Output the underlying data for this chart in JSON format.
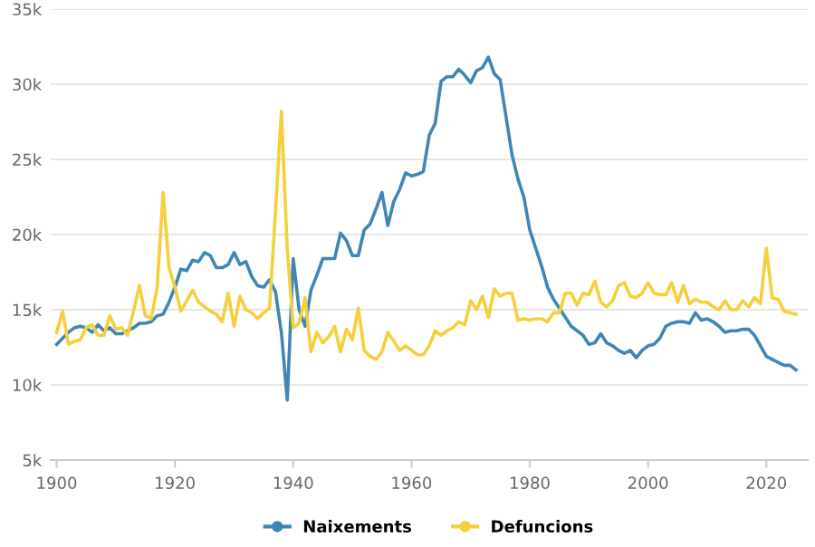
{
  "chart_data": {
    "type": "line",
    "x": [
      1900,
      1901,
      1902,
      1903,
      1904,
      1905,
      1906,
      1907,
      1908,
      1909,
      1910,
      1911,
      1912,
      1913,
      1914,
      1915,
      1916,
      1917,
      1918,
      1919,
      1920,
      1921,
      1922,
      1923,
      1924,
      1925,
      1926,
      1927,
      1928,
      1929,
      1930,
      1931,
      1932,
      1933,
      1934,
      1935,
      1936,
      1937,
      1938,
      1939,
      1940,
      1941,
      1942,
      1943,
      1944,
      1945,
      1946,
      1947,
      1948,
      1949,
      1950,
      1951,
      1952,
      1953,
      1954,
      1955,
      1956,
      1957,
      1958,
      1959,
      1960,
      1961,
      1962,
      1963,
      1964,
      1965,
      1966,
      1967,
      1968,
      1969,
      1970,
      1971,
      1972,
      1973,
      1974,
      1975,
      1976,
      1977,
      1978,
      1979,
      1980,
      1981,
      1982,
      1983,
      1984,
      1985,
      1986,
      1987,
      1988,
      1989,
      1990,
      1991,
      1992,
      1993,
      1994,
      1995,
      1996,
      1997,
      1998,
      1999,
      2000,
      2001,
      2002,
      2003,
      2004,
      2005,
      2006,
      2007,
      2008,
      2009,
      2010,
      2011,
      2012,
      2013,
      2014,
      2015,
      2016,
      2017,
      2018,
      2019,
      2020,
      2021,
      2022,
      2023,
      2024,
      2025
    ],
    "series": [
      {
        "name": "Naixements",
        "color": "#3f86b6",
        "values": [
          12700,
          13100,
          13500,
          13800,
          13900,
          13800,
          13500,
          14000,
          13600,
          13800,
          13400,
          13400,
          13600,
          13800,
          14100,
          14100,
          14200,
          14600,
          14700,
          15500,
          16500,
          17700,
          17600,
          18300,
          18200,
          18800,
          18600,
          17800,
          17800,
          18000,
          18800,
          18000,
          18200,
          17200,
          16600,
          16500,
          17000,
          16200,
          13500,
          9000,
          18400,
          15000,
          13900,
          16300,
          17300,
          18400,
          18400,
          18400,
          20100,
          19600,
          18600,
          18600,
          20300,
          20700,
          21700,
          22800,
          20600,
          22200,
          23000,
          24100,
          23900,
          24000,
          24200,
          26600,
          27400,
          30200,
          30500,
          30500,
          31000,
          30600,
          30100,
          30900,
          31100,
          31800,
          30700,
          30300,
          27800,
          25300,
          23700,
          22500,
          20300,
          19100,
          17900,
          16500,
          15700,
          15100,
          14500,
          13900,
          13600,
          13300,
          12700,
          12800,
          13400,
          12800,
          12600,
          12300,
          12100,
          12300,
          11800,
          12300,
          12600,
          12700,
          13100,
          13900,
          14100,
          14200,
          14200,
          14100,
          14800,
          14300,
          14400,
          14200,
          13900,
          13500,
          13600,
          13600,
          13700,
          13700,
          13300,
          12600,
          11900,
          11700,
          11500,
          11300,
          11300,
          11000
        ]
      },
      {
        "name": "Defuncions",
        "color": "#f5cf3c",
        "values": [
          13500,
          14900,
          12700,
          12900,
          13000,
          13800,
          14000,
          13300,
          13300,
          14600,
          13700,
          13800,
          13300,
          14900,
          16600,
          14600,
          14400,
          16500,
          22800,
          17800,
          16500,
          14900,
          15600,
          16300,
          15500,
          15200,
          14900,
          14700,
          14200,
          16100,
          13900,
          15900,
          15000,
          14800,
          14400,
          14800,
          15100,
          21500,
          28200,
          19000,
          13800,
          14100,
          15800,
          12200,
          13500,
          12800,
          13200,
          13900,
          12200,
          13700,
          13000,
          15100,
          12300,
          11900,
          11700,
          12200,
          13500,
          12900,
          12300,
          12600,
          12300,
          12000,
          12000,
          12600,
          13600,
          13300,
          13600,
          13800,
          14200,
          14000,
          15600,
          15000,
          15900,
          14500,
          16400,
          15900,
          16100,
          16100,
          14300,
          14400,
          14300,
          14400,
          14400,
          14200,
          14800,
          14800,
          16100,
          16100,
          15300,
          16100,
          16000,
          16900,
          15500,
          15200,
          15600,
          16600,
          16800,
          15900,
          15800,
          16100,
          16800,
          16100,
          16000,
          16000,
          16800,
          15500,
          16600,
          15400,
          15700,
          15500,
          15500,
          15200,
          15000,
          15600,
          15000,
          15000,
          15600,
          15200,
          15800,
          15400,
          19100,
          15800,
          15700,
          14900,
          14800,
          14700
        ]
      }
    ],
    "xlim": [
      1899,
      2027
    ],
    "xticks": [
      1900,
      1920,
      1940,
      1960,
      1980,
      2000,
      2020
    ],
    "ylim": [
      5000,
      35000
    ],
    "yticks": [
      {
        "value": 5000,
        "label": "5k"
      },
      {
        "value": 10000,
        "label": "10k"
      },
      {
        "value": 15000,
        "label": "15k"
      },
      {
        "value": 20000,
        "label": "20k"
      },
      {
        "value": 25000,
        "label": "25k"
      },
      {
        "value": 30000,
        "label": "30k"
      },
      {
        "value": 35000,
        "label": "35k"
      }
    ],
    "grid": "y",
    "legend": "bottom"
  }
}
